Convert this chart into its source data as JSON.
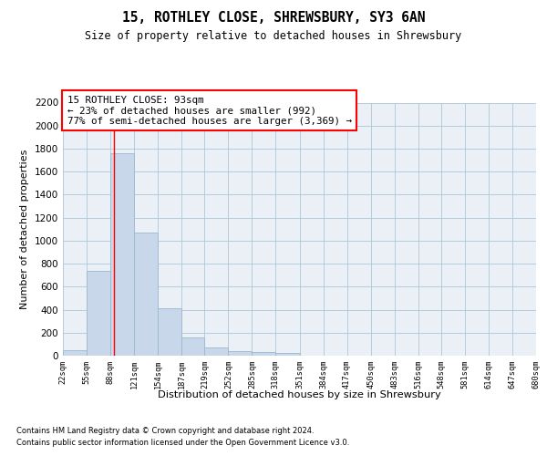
{
  "title1": "15, ROTHLEY CLOSE, SHREWSBURY, SY3 6AN",
  "title2": "Size of property relative to detached houses in Shrewsbury",
  "xlabel": "Distribution of detached houses by size in Shrewsbury",
  "ylabel": "Number of detached properties",
  "footnote1": "Contains HM Land Registry data © Crown copyright and database right 2024.",
  "footnote2": "Contains public sector information licensed under the Open Government Licence v3.0.",
  "bar_edges": [
    22,
    55,
    88,
    121,
    154,
    187,
    219,
    252,
    285,
    318,
    351,
    384,
    417,
    450,
    483,
    516,
    548,
    581,
    614,
    647,
    680
  ],
  "bar_heights": [
    50,
    740,
    1760,
    1070,
    415,
    155,
    75,
    40,
    30,
    20,
    0,
    0,
    0,
    0,
    0,
    0,
    0,
    0,
    0,
    0
  ],
  "bar_color": "#c8d8ea",
  "bar_edgecolor": "#9ab8cc",
  "bar_linewidth": 0.6,
  "red_line_x": 93,
  "annotation_title": "15 ROTHLEY CLOSE: 93sqm",
  "annotation_line1": "← 23% of detached houses are smaller (992)",
  "annotation_line2": "77% of semi-detached houses are larger (3,369) →",
  "annotation_box_color": "white",
  "annotation_box_edgecolor": "red",
  "ylim": [
    0,
    2200
  ],
  "yticks": [
    0,
    200,
    400,
    600,
    800,
    1000,
    1200,
    1400,
    1600,
    1800,
    2000,
    2200
  ],
  "grid_color": "#aec6d8",
  "background_color": "#eaf0f6",
  "tick_labels": [
    "22sqm",
    "55sqm",
    "88sqm",
    "121sqm",
    "154sqm",
    "187sqm",
    "219sqm",
    "252sqm",
    "285sqm",
    "318sqm",
    "351sqm",
    "384sqm",
    "417sqm",
    "450sqm",
    "483sqm",
    "516sqm",
    "548sqm",
    "581sqm",
    "614sqm",
    "647sqm",
    "680sqm"
  ]
}
